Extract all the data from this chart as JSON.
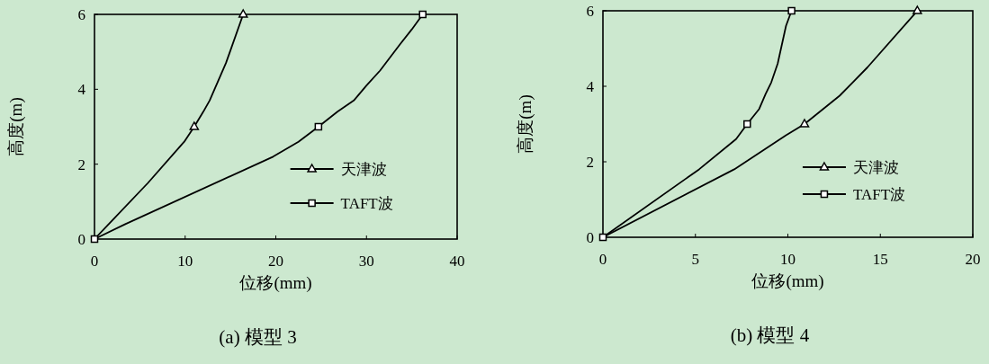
{
  "chart_data": [
    {
      "type": "line",
      "xlabel": "位移(mm)",
      "ylabel": "高度(m)",
      "annotations": [
        "(a)  模型 3"
      ],
      "xlim": [
        0,
        40
      ],
      "ylim": [
        0,
        6
      ],
      "xticks": [
        0,
        10,
        20,
        30,
        40
      ],
      "yticks": [
        0,
        2,
        4,
        6
      ],
      "legend": "bottom right",
      "grid": false,
      "series": [
        {
          "color": "#000000",
          "marker": "none",
          "x": [
            0,
            5.9,
            9.9,
            11.0,
            12.0,
            12.7,
            14.5,
            16.4
          ],
          "values": [
            0,
            1.5,
            2.6,
            3.0,
            3.4,
            3.7,
            4.7,
            6.0
          ]
        },
        {
          "color": "#000000",
          "marker": "none",
          "x": [
            0,
            3.4,
            19.7,
            22.5,
            24.7,
            26.8,
            28.6,
            30.0,
            31.5,
            33.7,
            35.0,
            36.2
          ],
          "values": [
            0,
            0.4,
            2.2,
            2.6,
            3.0,
            3.4,
            3.7,
            4.1,
            4.5,
            5.2,
            5.6,
            6.0
          ]
        },
        {
          "type": "scatter",
          "name": "天津波",
          "color": "#000000",
          "marker": "triangle",
          "x": [
            11.0,
            16.4
          ],
          "values": [
            3.0,
            6.0
          ]
        },
        {
          "type": "scatter",
          "name": "TAFT波",
          "color": "#000000",
          "marker": "square",
          "x": [
            0,
            24.7,
            36.2
          ],
          "values": [
            0,
            3.0,
            6.0
          ]
        }
      ]
    },
    {
      "type": "line",
      "xlabel": "位移(mm)",
      "ylabel": "高度(m)",
      "annotations": [
        "(b)  模型 4"
      ],
      "xlim": [
        0,
        20
      ],
      "ylim": [
        0,
        6
      ],
      "xticks": [
        0,
        5,
        10,
        15,
        20
      ],
      "yticks": [
        0,
        2,
        4,
        6
      ],
      "legend": "bottom right",
      "grid": false,
      "series": [
        {
          "color": "#000000",
          "marker": "none",
          "x": [
            0,
            7.1,
            9.9,
            10.9,
            12.8,
            13.5,
            14.3,
            17.0
          ],
          "values": [
            0,
            1.8,
            2.7,
            3.0,
            3.75,
            4.1,
            4.5,
            6.0
          ]
        },
        {
          "color": "#000000",
          "marker": "none",
          "x": [
            0,
            5.2,
            7.2,
            7.8,
            8.45,
            8.8,
            9.1,
            9.45,
            9.9,
            10.2
          ],
          "values": [
            0,
            1.8,
            2.6,
            3.0,
            3.4,
            3.8,
            4.1,
            4.6,
            5.6,
            6.0
          ]
        },
        {
          "type": "scatter",
          "name": "天津波",
          "color": "#000000",
          "marker": "triangle",
          "x": [
            10.9,
            17.0
          ],
          "values": [
            3.0,
            6.0
          ]
        },
        {
          "type": "scatter",
          "name": "TAFT波",
          "color": "#000000",
          "marker": "square",
          "x": [
            0,
            7.8,
            10.2
          ],
          "values": [
            0,
            3.0,
            6.0
          ]
        }
      ]
    }
  ]
}
